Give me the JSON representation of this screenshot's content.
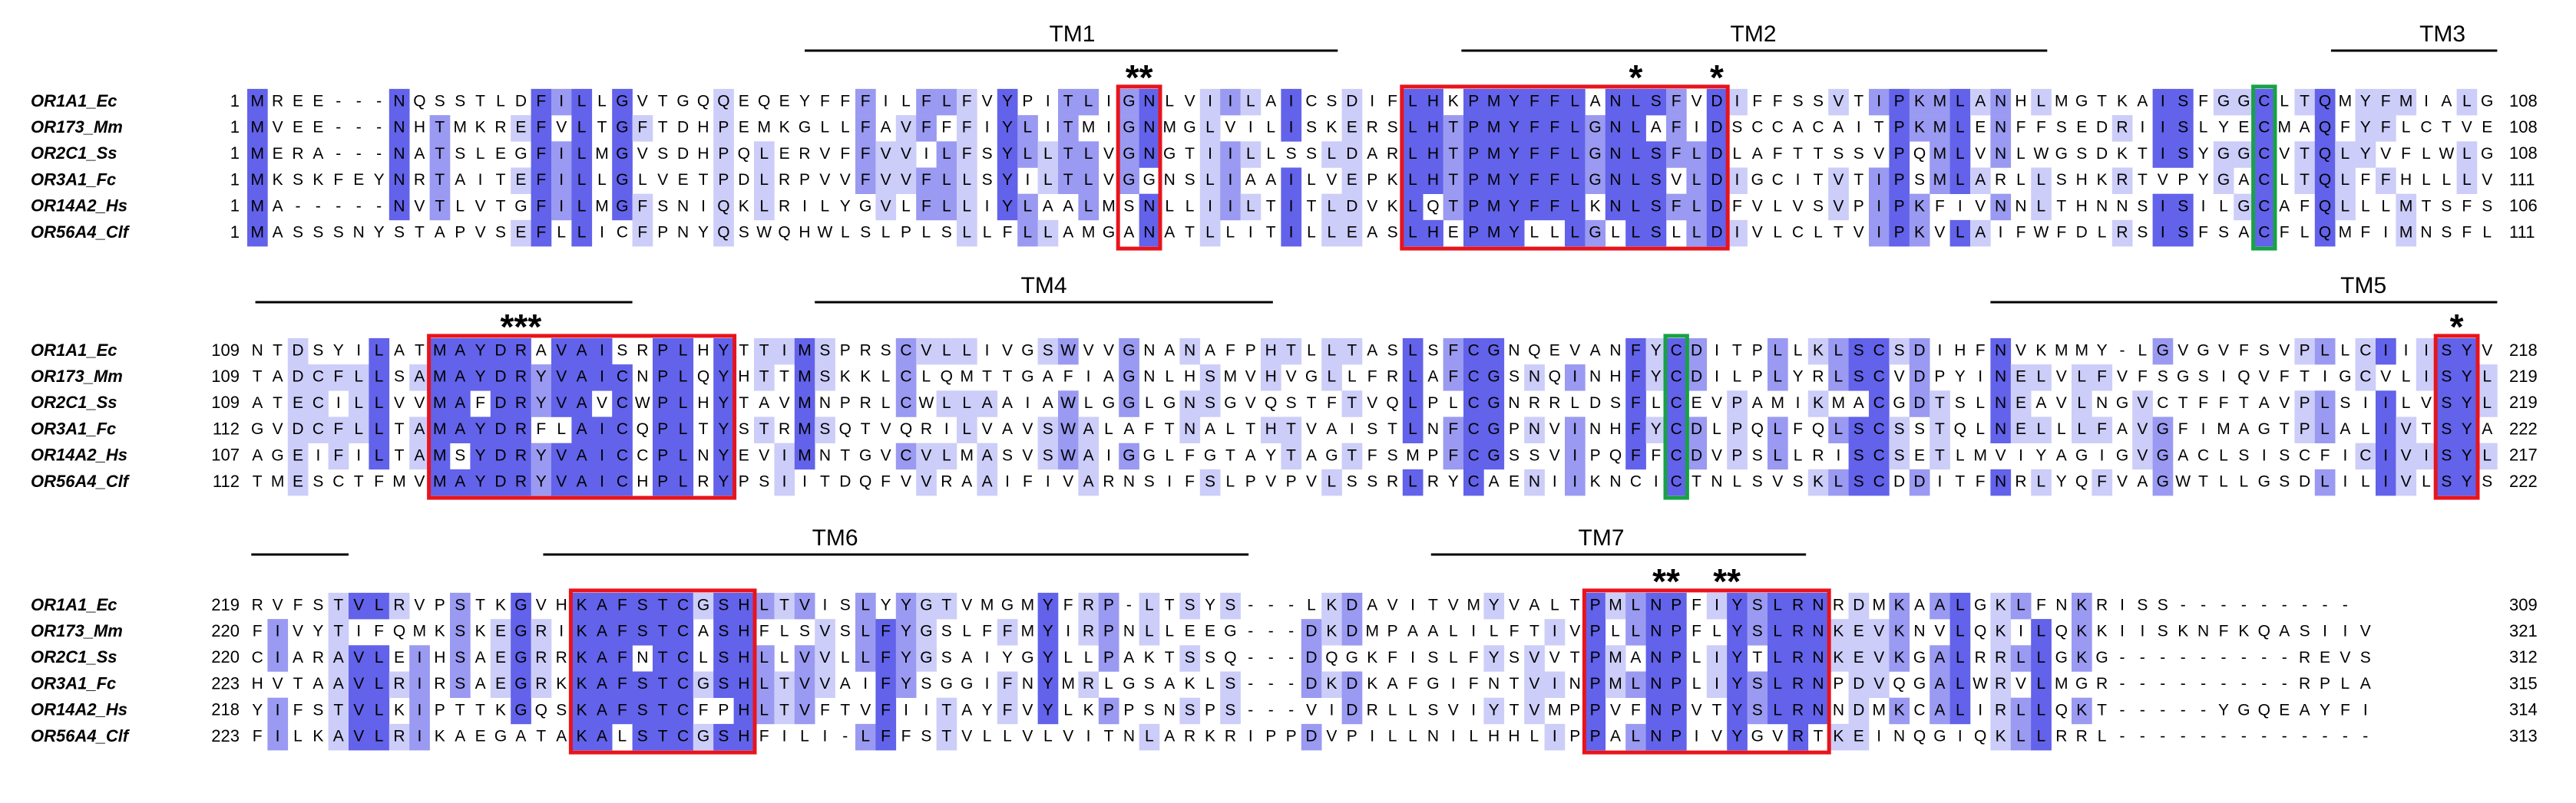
{
  "blocks": [
    {
      "labels": [
        "TM1",
        "TM2",
        "TM3"
      ],
      "stars": [
        "**",
        "*",
        "*"
      ],
      "rows": [
        {
          "name": "OR1A1_Ec",
          "start": 1,
          "sequence": "MREE---NQSSTLDFILLGVTGQQEQEYFFFILFLFVYPITLIGNLVIILAICSDIFLHKPMYFFLANLSFVDIFFSSVTIPKMLANHLMGTKAISFGGCLTQMYFMIALG",
          "end": 108
        },
        {
          "name": "OR173_Mm",
          "start": 1,
          "sequence": "MVEE---NHTMKREFVLTGFTDHPEMKGLLFAVFFFIYLITMIGNMGLVILISKERSLHTPMYFFLGNLAFIDSCCACAITPKMLENFFSEDRIISLYECMAQFYFLCTVE",
          "end": 108
        },
        {
          "name": "OR2C1_Ss",
          "start": 1,
          "sequence": "MERA---NATSLEGFILMGVSDHPQLERVFFVVILFSYLLTLVGNGTIILLSSLDARLHTPMYFFLGNLSFLDLAFTTSSVPQMLVNLWGSDKTISYGGCVTQLYVFLWLG",
          "end": 108
        },
        {
          "name": "OR3A1_Fc",
          "start": 1,
          "sequence": "MKSKFEYNRTAITEFILLGLVETPDLRPVVFVVFLLSYILTLVGGNSLIAAILVEPKLHTPMYFFLGNLSVLDIGCITVTIPSMLARLLSHKRTVPYGACLTQLFFHLLLV",
          "end": 111
        },
        {
          "name": "OR14A2_Hs",
          "start": 1,
          "sequence": "MA-----NVTLVTGFILMGFSNIQKLRILYGVLFLLIYLAALMSNLLIILTITLDVKLQTPMYFFLKNLSFLDFVLVSVPIPKFIVNNLTHNNSISILGCAFQLLLMTSFS",
          "end": 106
        },
        {
          "name": "OR56A4_Clf",
          "start": 1,
          "sequence": "MASSSNYSTAPVSEFLLICFPNYQSWQHWLSLPLSLLFLLAMGANATLLITILLEASLHEPMYLLLGLLSLLDIVLCLTVIPKVLAIFWFDLRSISFSACFLQMFIMNSFL",
          "end": 111
        }
      ]
    },
    {
      "labels": [
        "TM4",
        "TM5"
      ],
      "stars": [
        "***",
        "*"
      ],
      "rows": [
        {
          "name": "OR1A1_Ec",
          "start": 109,
          "sequence": "NTDSYILATMAYDRAVAISRPLHYTTIMSPRSCVLLIVGSWVVGNANAFPHTLLTASLSFCGNQEVANFYCDITPLLKLSCSDIHFNVKMMY-LGVGVFSVPLLCIIISYV",
          "end": 218
        },
        {
          "name": "OR173_Mm",
          "start": 109,
          "sequence": "TADCFLLSAMAYDRYVAICNPLQYHTTMSKKLCLQMTTGAFIAGNLHSMVHVGLLFRLAFCGSNQINHFYCDILPLYRLSCVDPYINELVLFVFSGSIQVFTIGCVLISYL",
          "end": 219
        },
        {
          "name": "OR2C1_Ss",
          "start": 109,
          "sequence": "ATECILLVVMAFDRYVAVCWPLHYTAVMNPRLCWLLAAIAWLGGLGNSGVQSTFTVQLPLCGNRRLDSFLCEVPAMIKMACGDTSLNEAVLNGVCTFFTAVPLSIILVSYL",
          "end": 219
        },
        {
          "name": "OR3A1_Fc",
          "start": 112,
          "sequence": "GVDCFLLTAMAYDRFLAICQPLTYSTRMSQTVQRILVAVSWALAFTNALTHTVAISTLNFCGPNVINHFYCDLPQLFQLSCSSTQLNELLLFAVGFIMAGTPLALIVTSYA",
          "end": 222
        },
        {
          "name": "OR14A2_Hs",
          "start": 107,
          "sequence": "AGEIFILTAMSYDRYVAICCPLNYEVIMNTGVCVLMASVSWAIGGLFGTAYTAGTFSMPFCGSSVIPQFFCDVPSLLRISCSETLMVIYAGIGVGACLSISCFICIVISYL",
          "end": 217
        },
        {
          "name": "OR56A4_Clf",
          "start": 112,
          "sequence": "TMESCTFMVMAYDRYVAICHPLRYPSIITDQFVVRAAIFIVARNSIFSLPVPVLSSRLRYCAENIIKNCICTNLSVSKLSCDDITFNRLYQFVAGWTLLGSDLILIVLSYS",
          "end": 222
        }
      ]
    },
    {
      "labels": [
        "TM6",
        "TM7"
      ],
      "stars": [
        "**",
        "**"
      ],
      "rows": [
        {
          "name": "OR1A1_Ec",
          "start": 219,
          "sequence": "RVFSTVLRVPSTKGVHKAFSTCGSHLTVISLYYGTVMGMYFRP-LTSYS---LKDAVITVMYVALTPMLNPFIYSLRNRDMKAALGKLFNKRISS---------",
          "end": 309
        },
        {
          "name": "OR173_Mm",
          "start": 220,
          "sequence": "FIVYTIFQMKSKEGRIKAFSTCASHFLSVSLFYGSLFFMYIRPNLLEEG---DKDMPAALILFTIVPLLNPFLYSLRNKEVKNVLQKILQKKIISKNFKQASIIV",
          "end": 321
        },
        {
          "name": "OR2C1_Ss",
          "start": 220,
          "sequence": "CIARAVLEIHSAEGRRKAFNTCLSHLLVVLLFYGSAIYGYLLPAKTSSQ---DQGKFISLFYSVVTPMANPLIYTLRNKEVKGALRRLLGKG---------REVS",
          "end": 312
        },
        {
          "name": "OR3A1_Fc",
          "start": 223,
          "sequence": "HVTAAVLRIRSAEGRKKAFSTCGSHLTVVAIFYSGGIFNYMRLGSAKLS---DKDKAFGIFNTVINPMLNPLIYSLRNPDVQGALWRVLMGR---------RPLA",
          "end": 315
        },
        {
          "name": "OR14A2_Hs",
          "start": 218,
          "sequence": "YIFSTVLKIPTTKGQSKAFSTCFPHLTVFTVFIITAYFVYLKPPSNSPS---VIDRLLSVIYTVMPPVFNPVTYSLRNNDMKCALIRLLQKT-----YGQEAYFI",
          "end": 314
        },
        {
          "name": "OR56A4_Clf",
          "start": 223,
          "sequence": "FILKAVLRIKAEGATAKALSTCGSHFILI-LFFSTVLLVLVITNLARKRIPPDVPILLNILHHLIPPALNPIVYGVRTKEINQGIQKLLRRL-------------",
          "end": 313
        }
      ]
    }
  ]
}
